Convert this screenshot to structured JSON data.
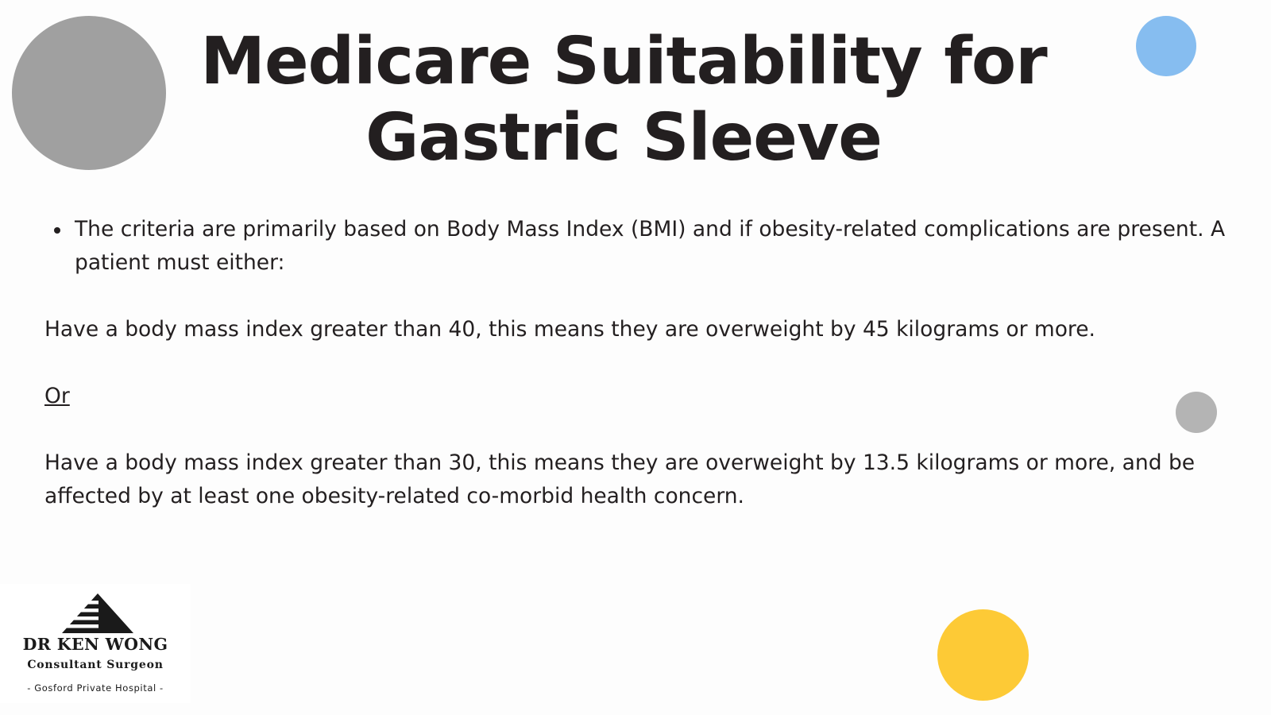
{
  "title": {
    "line1": "Medicare Suitability for",
    "line2": "Gastric Sleeve"
  },
  "content": {
    "bullet": "The criteria are primarily based on Body Mass Index (BMI) and if obesity-related complications are present. A patient must either:",
    "option1": "Have a body mass index greater than 40, this means they are overweight by 45 kilograms or more.",
    "or_label": "Or",
    "option2": "Have a body mass index greater than 30, this means they are overweight by 13.5 kilograms or more, and be affected by at least one obesity-related co-morbid health concern."
  },
  "logo": {
    "name": "DR KEN WONG",
    "subtitle": "Consultant Surgeon",
    "hospital": "- Gosford Private Hospital -",
    "icon": "pyramid-logo-icon"
  },
  "decorations": {
    "colors": {
      "gray_large": "#a0a0a0",
      "blue": "#86bdf0",
      "gray_small": "#b4b4b4",
      "yellow": "#fdca36"
    }
  },
  "colors": {
    "text": "#231f20",
    "background": "#fdfdfd"
  }
}
